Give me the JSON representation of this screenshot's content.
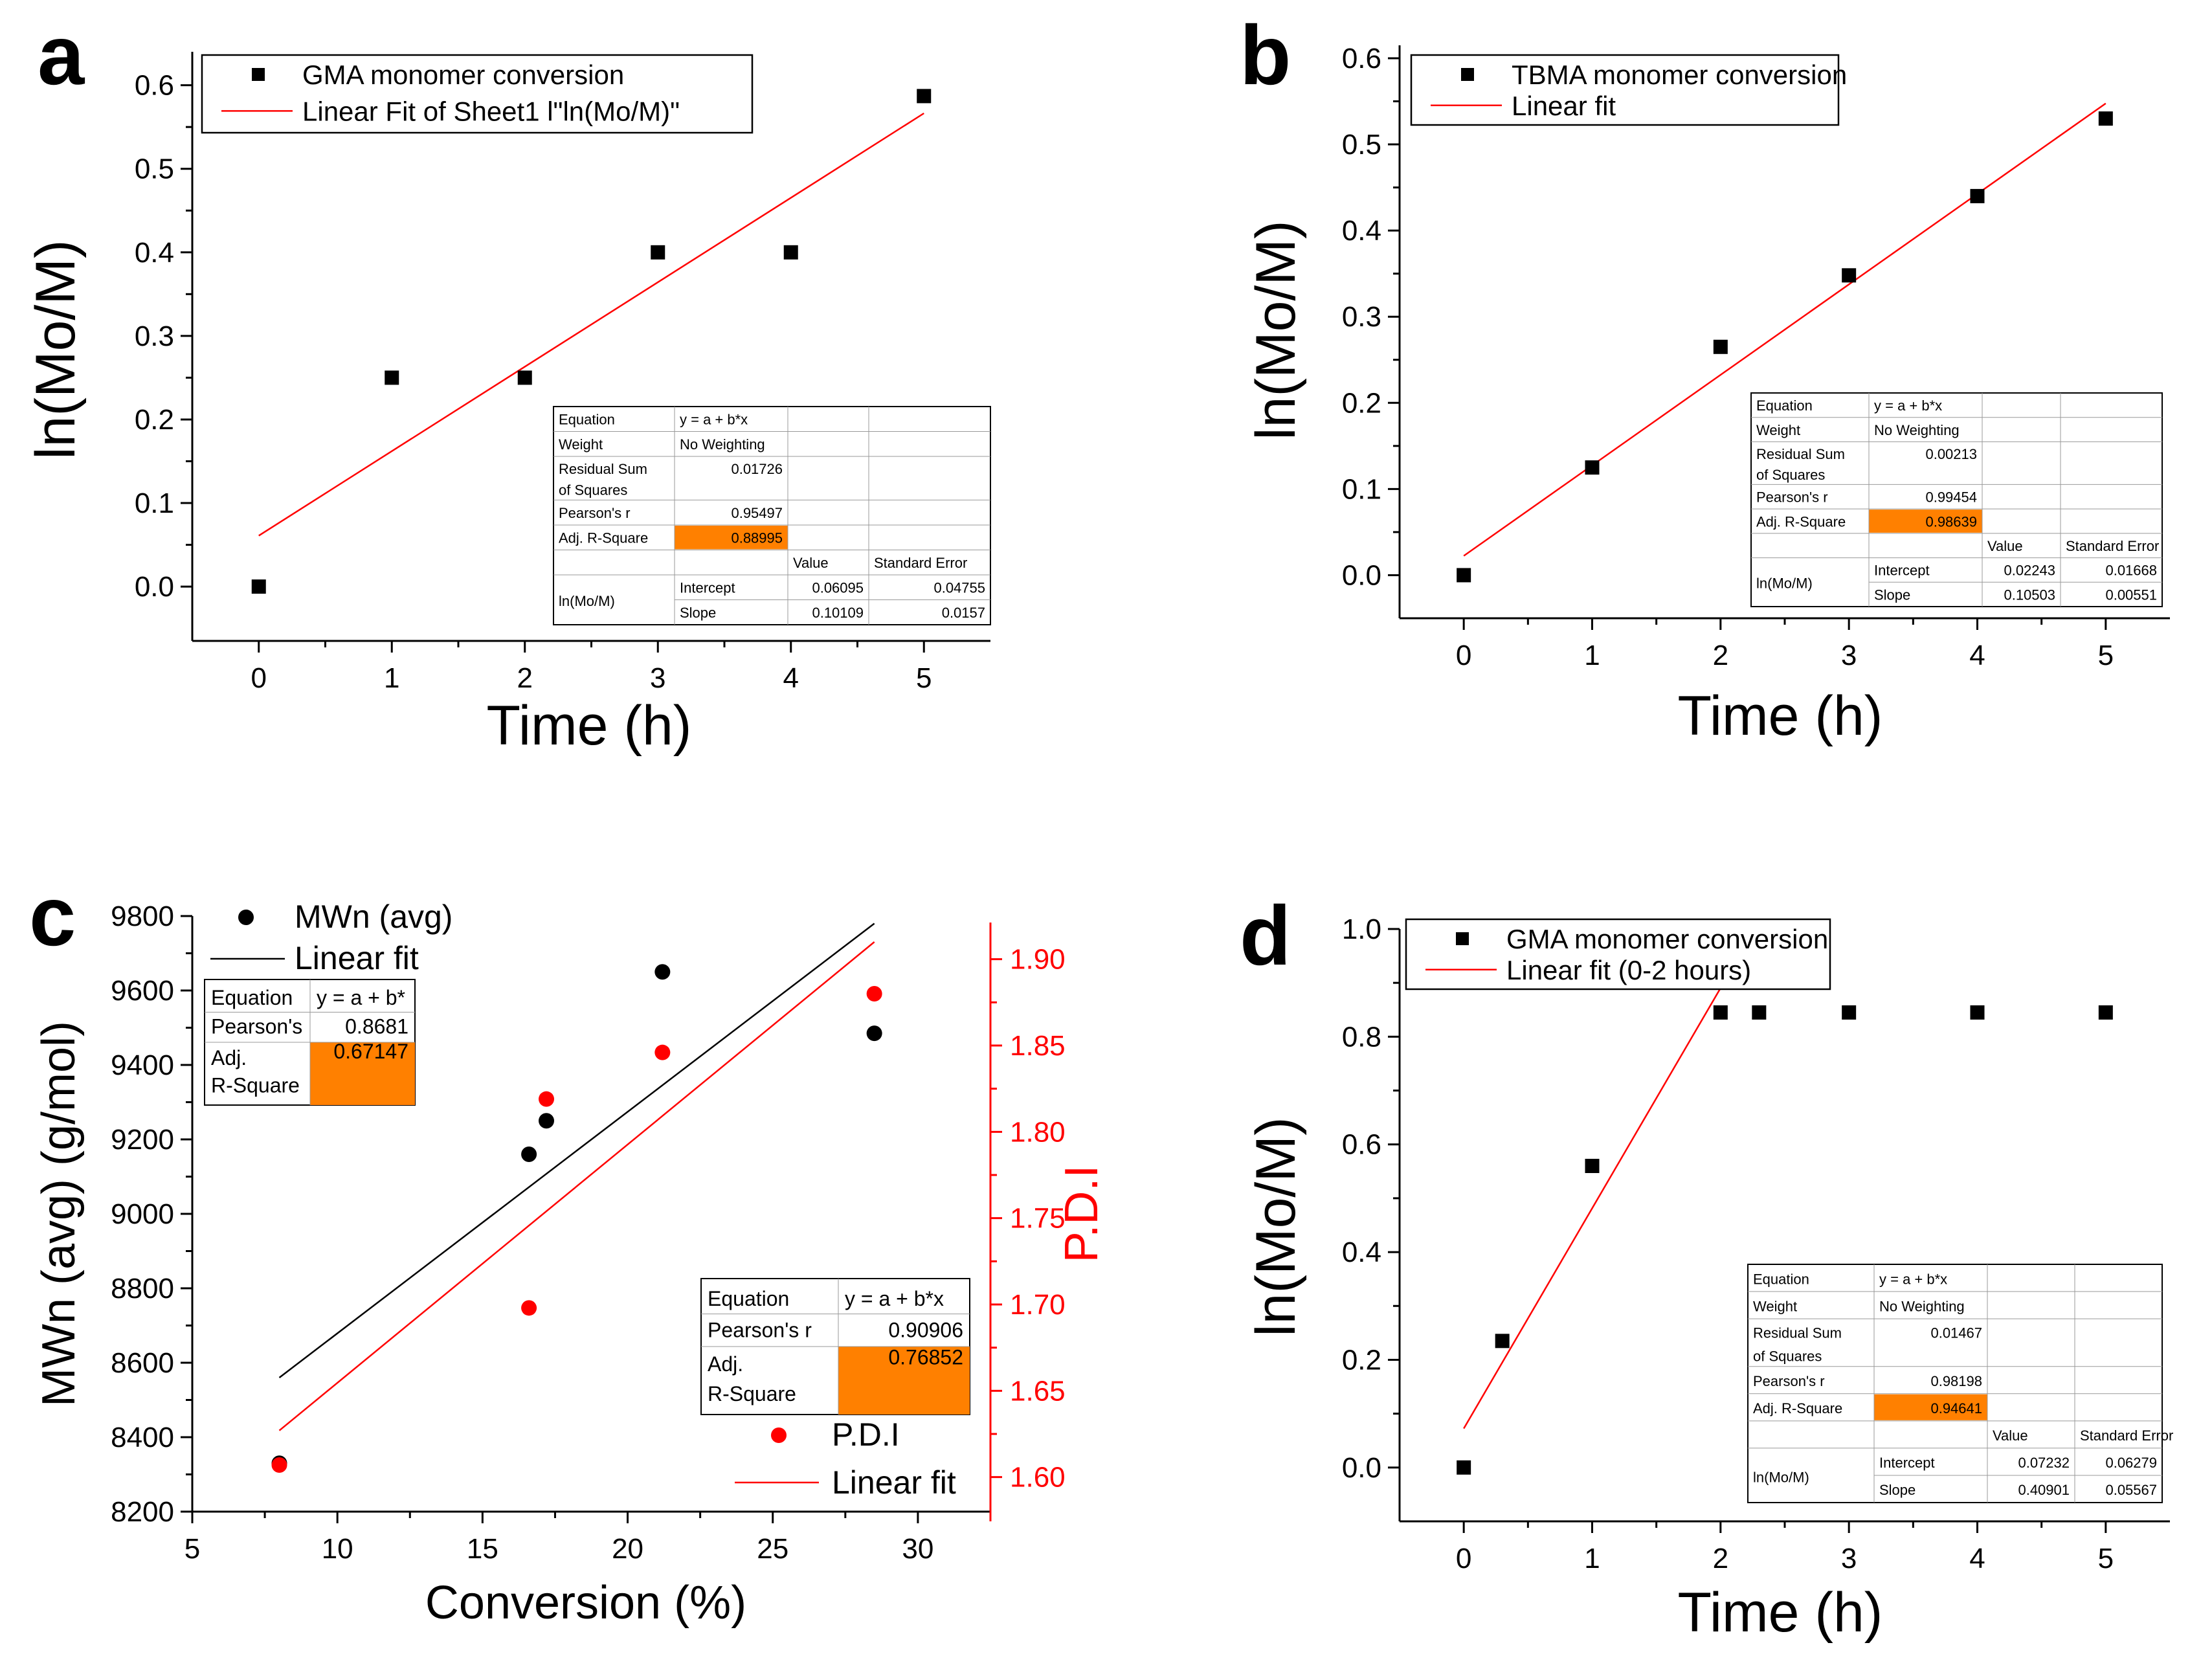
{
  "chart_data": [
    {
      "panel": "a",
      "type": "scatter",
      "xlabel": "Time (h)",
      "ylabel": "ln(Mo/M)",
      "xlim": [
        -0.5,
        5.5
      ],
      "ylim": [
        -0.065,
        0.64
      ],
      "x_ticks": [
        "0",
        "1",
        "2",
        "3",
        "4",
        "5"
      ],
      "y_ticks": [
        "0.0",
        "0.1",
        "0.2",
        "0.3",
        "0.4",
        "0.5",
        "0.6"
      ],
      "series": [
        {
          "name": "GMA monomer conversion",
          "x": [
            0,
            1,
            2,
            3,
            4,
            5
          ],
          "y": [
            0.0,
            0.25,
            0.25,
            0.4,
            0.4,
            0.587
          ]
        }
      ],
      "fit": {
        "name": "Linear Fit of Sheet1 l\"ln(Mo/M)\"",
        "intercept": 0.06095,
        "slope": 0.10109,
        "x_range": [
          0,
          5
        ]
      },
      "stats_table": {
        "rows": [
          [
            "Equation",
            "y = a + b*x",
            "",
            ""
          ],
          [
            "Weight",
            "No Weighting",
            "",
            ""
          ],
          [
            "Residual Sum of Squares",
            "0.01726",
            "",
            ""
          ],
          [
            "Pearson's r",
            "0.95497",
            "",
            ""
          ],
          [
            "Adj. R-Square",
            "0.88995",
            "",
            ""
          ],
          [
            "",
            "",
            "Value",
            "Standard Error"
          ],
          [
            "ln(Mo/M)",
            "Intercept",
            "0.06095",
            "0.04755"
          ],
          [
            "",
            "Slope",
            "0.10109",
            "0.0157"
          ]
        ]
      }
    },
    {
      "panel": "b",
      "type": "scatter",
      "xlabel": "Time (h)",
      "ylabel": "ln(Mo/M)",
      "xlim": [
        -0.5,
        5.5
      ],
      "ylim": [
        -0.05,
        0.615
      ],
      "x_ticks": [
        "0",
        "1",
        "2",
        "3",
        "4",
        "5"
      ],
      "y_ticks": [
        "0.0",
        "0.1",
        "0.2",
        "0.3",
        "0.4",
        "0.5",
        "0.6"
      ],
      "series": [
        {
          "name": "TBMA monomer conversion",
          "x": [
            0,
            1,
            2,
            3,
            4,
            5
          ],
          "y": [
            0.0,
            0.125,
            0.265,
            0.348,
            0.44,
            0.53
          ]
        }
      ],
      "fit": {
        "name": "Linear fit",
        "intercept": 0.02243,
        "slope": 0.10503,
        "x_range": [
          0,
          5
        ]
      },
      "stats_table": {
        "rows": [
          [
            "Equation",
            "y = a + b*x",
            "",
            ""
          ],
          [
            "Weight",
            "No Weighting",
            "",
            ""
          ],
          [
            "Residual Sum of Squares",
            "0.00213",
            "",
            ""
          ],
          [
            "Pearson's r",
            "0.99454",
            "",
            ""
          ],
          [
            "Adj. R-Square",
            "0.98639",
            "",
            ""
          ],
          [
            "",
            "",
            "Value",
            "Standard Error"
          ],
          [
            "ln(Mo/M)",
            "Intercept",
            "0.02243",
            "0.01668"
          ],
          [
            "",
            "Slope",
            "0.10503",
            "0.00551"
          ]
        ]
      }
    },
    {
      "panel": "c",
      "type": "scatter",
      "xlabel": "Conversion (%)",
      "ylabel": "MWn (avg) (g/mol)",
      "ylabel_right": "P.D.I",
      "xlim": [
        5,
        32.5
      ],
      "ylim": [
        8200,
        9800
      ],
      "ylim_right": [
        1.58,
        1.925
      ],
      "x_ticks": [
        "5",
        "10",
        "15",
        "20",
        "25",
        "30"
      ],
      "y_ticks": [
        "8200",
        "8400",
        "8600",
        "8800",
        "9000",
        "9200",
        "9400",
        "9600",
        "9800"
      ],
      "y_ticks_right": [
        "1.60",
        "1.65",
        "1.70",
        "1.75",
        "1.80",
        "1.85",
        "1.90"
      ],
      "series": [
        {
          "name": "MWn (avg)",
          "axis": "left",
          "x": [
            8.0,
            16.6,
            17.2,
            21.2,
            28.5
          ],
          "y": [
            8330,
            9160,
            9250,
            9650,
            9485
          ]
        },
        {
          "name": "P.D.I",
          "axis": "right",
          "x": [
            8.0,
            16.6,
            17.2,
            21.2,
            28.5
          ],
          "y": [
            1.607,
            1.698,
            1.819,
            1.846,
            1.88
          ]
        }
      ],
      "fits": [
        {
          "name": "Linear fit",
          "axis": "left",
          "x_range": [
            8.0,
            28.5
          ],
          "y_range": [
            8560,
            9780
          ]
        },
        {
          "name": "Linear fit",
          "axis": "right",
          "x_range": [
            8.0,
            28.5
          ],
          "y_range": [
            1.627,
            1.91
          ]
        }
      ],
      "stats_table_left": {
        "rows": [
          [
            "Equation",
            "y = a + b*"
          ],
          [
            "Pearson's",
            "0.8681"
          ],
          [
            "Adj. R-Square",
            "0.67147"
          ]
        ]
      },
      "stats_table_right": {
        "rows": [
          [
            "Equation",
            "y = a + b*x"
          ],
          [
            "Pearson's r",
            "0.90906"
          ],
          [
            "Adj. R-Square",
            "0.76852"
          ]
        ]
      }
    },
    {
      "panel": "d",
      "type": "scatter",
      "xlabel": "Time (h)",
      "ylabel": "ln(Mo/M)",
      "xlim": [
        -0.5,
        5.5
      ],
      "ylim": [
        -0.1,
        1.0
      ],
      "x_ticks": [
        "0",
        "1",
        "2",
        "3",
        "4",
        "5"
      ],
      "y_ticks": [
        "0.0",
        "0.2",
        "0.4",
        "0.6",
        "0.8",
        "1.0"
      ],
      "series": [
        {
          "name": "GMA monomer conversion",
          "x": [
            0,
            0.3,
            1,
            2,
            2.3,
            3,
            4,
            5
          ],
          "y": [
            0.0,
            0.235,
            0.56,
            0.845,
            0.845,
            0.845,
            0.845,
            0.845
          ]
        }
      ],
      "fit": {
        "name": "Linear fit (0-2 hours)",
        "intercept": 0.07232,
        "slope": 0.40901,
        "x_range": [
          0,
          2
        ]
      },
      "stats_table": {
        "rows": [
          [
            "Equation",
            "y = a + b*x",
            "",
            ""
          ],
          [
            "Weight",
            "No Weighting",
            "",
            ""
          ],
          [
            "Residual Sum of Squares",
            "0.01467",
            "",
            ""
          ],
          [
            "Pearson's r",
            "0.98198",
            "",
            ""
          ],
          [
            "Adj. R-Square",
            "0.94641",
            "",
            ""
          ],
          [
            "",
            "",
            "Value",
            "Standard Error"
          ],
          [
            "ln(Mo/M)",
            "Intercept",
            "0.07232",
            "0.06279"
          ],
          [
            "",
            "Slope",
            "0.40901",
            "0.05567"
          ]
        ]
      }
    }
  ],
  "colors": {
    "series": "#000000",
    "fit": "#ff0000",
    "pdi": "#ff0000",
    "highlight": "#ff8000"
  }
}
